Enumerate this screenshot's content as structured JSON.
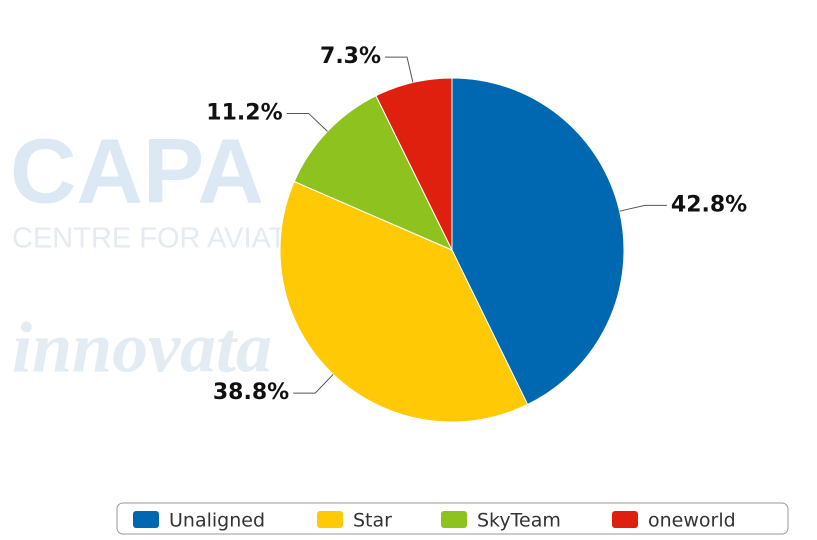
{
  "chart_data": {
    "type": "pie",
    "categories": [
      "Unaligned",
      "Star",
      "SkyTeam",
      "oneworld"
    ],
    "values": [
      42.8,
      38.8,
      11.2,
      7.3
    ],
    "value_labels": [
      "42.8%",
      "38.8%",
      "11.2%",
      "7.3%"
    ],
    "colors": [
      "#0067b1",
      "#ffc906",
      "#8dc21f",
      "#df200e"
    ],
    "legend": "bottom",
    "watermarks": [
      "CAPA",
      "CENTRE FOR AVIATION",
      "innovata"
    ]
  }
}
